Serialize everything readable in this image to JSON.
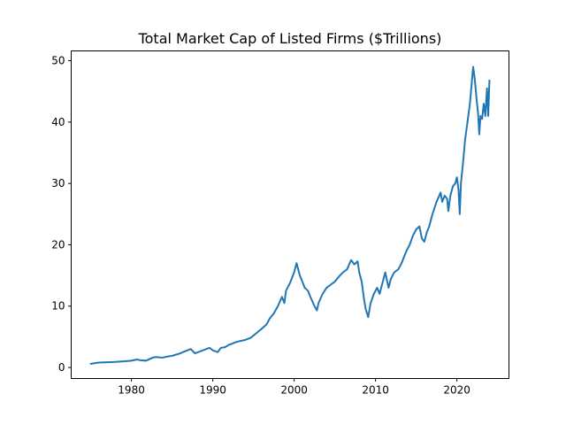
{
  "chart_data": {
    "type": "line",
    "title": "Total Market Cap of Listed Firms ($Trillions)",
    "xlabel": "",
    "ylabel": "",
    "xlim": [
      1972.6,
      2026.4
    ],
    "ylim": [
      -1.8,
      51.6
    ],
    "xticks": [
      1980,
      1990,
      2000,
      2010,
      2020
    ],
    "xtick_labels": [
      "1980",
      "1990",
      "2000",
      "2010",
      "2020"
    ],
    "yticks": [
      0,
      10,
      20,
      30,
      40,
      50
    ],
    "ytick_labels": [
      "0",
      "10",
      "20",
      "30",
      "40",
      "50"
    ],
    "grid": false,
    "legend": "none",
    "series": [
      {
        "color": "#1f77b4",
        "x": [
          1975.0,
          1976.0,
          1977.0,
          1978.0,
          1979.0,
          1980.0,
          1980.7,
          1981.0,
          1981.8,
          1982.6,
          1983.0,
          1983.8,
          1984.5,
          1985.0,
          1986.0,
          1986.5,
          1987.3,
          1987.8,
          1988.0,
          1989.0,
          1989.6,
          1990.0,
          1990.6,
          1991.0,
          1991.5,
          1992.0,
          1993.0,
          1994.0,
          1994.6,
          1995.0,
          1996.0,
          1996.6,
          1997.0,
          1997.5,
          1998.0,
          1998.5,
          1998.8,
          1999.0,
          1999.5,
          2000.0,
          2000.3,
          2000.7,
          2001.0,
          2001.3,
          2001.7,
          2002.0,
          2002.5,
          2002.8,
          2003.0,
          2003.5,
          2004.0,
          2004.5,
          2005.0,
          2005.5,
          2006.0,
          2006.5,
          2007.0,
          2007.4,
          2007.8,
          2008.0,
          2008.3,
          2008.6,
          2008.8,
          2009.1,
          2009.4,
          2009.8,
          2010.2,
          2010.5,
          2010.8,
          2011.2,
          2011.6,
          2011.9,
          2012.3,
          2012.8,
          2013.2,
          2013.8,
          2014.2,
          2014.6,
          2015.0,
          2015.4,
          2015.7,
          2016.0,
          2016.3,
          2016.6,
          2017.0,
          2017.5,
          2018.0,
          2018.2,
          2018.5,
          2018.8,
          2018.95,
          2019.2,
          2019.5,
          2019.8,
          2020.0,
          2020.2,
          2020.35,
          2020.5,
          2020.8,
          2021.0,
          2021.3,
          2021.6,
          2021.8,
          2022.0,
          2022.2,
          2022.4,
          2022.6,
          2022.75,
          2022.9,
          2023.1,
          2023.3,
          2023.5,
          2023.7,
          2023.85,
          2024.0
        ],
        "values": [
          0.6,
          0.8,
          0.85,
          0.9,
          1.0,
          1.1,
          1.3,
          1.2,
          1.1,
          1.6,
          1.7,
          1.6,
          1.8,
          1.9,
          2.3,
          2.6,
          3.0,
          2.3,
          2.4,
          2.9,
          3.2,
          2.8,
          2.5,
          3.2,
          3.3,
          3.7,
          4.2,
          4.5,
          4.8,
          5.2,
          6.3,
          7.0,
          8.0,
          8.8,
          10.0,
          11.5,
          10.5,
          12.5,
          13.8,
          15.5,
          17.0,
          15.0,
          14.0,
          13.0,
          12.5,
          11.5,
          10.0,
          9.3,
          10.5,
          12.0,
          13.0,
          13.5,
          14.0,
          14.8,
          15.5,
          16.0,
          17.5,
          16.8,
          17.3,
          15.5,
          14.0,
          11.0,
          9.5,
          8.2,
          10.5,
          12.0,
          13.0,
          12.0,
          13.5,
          15.5,
          13.0,
          14.5,
          15.5,
          16.0,
          17.0,
          19.0,
          20.0,
          21.5,
          22.5,
          23.0,
          21.0,
          20.5,
          22.0,
          23.0,
          25.0,
          27.0,
          28.5,
          27.0,
          28.0,
          27.5,
          25.5,
          28.0,
          29.5,
          30.0,
          31.0,
          29.0,
          25.0,
          30.0,
          34.0,
          37.0,
          40.0,
          43.0,
          46.0,
          49.0,
          47.0,
          44.0,
          41.5,
          38.0,
          41.0,
          40.5,
          43.0,
          41.0,
          45.5,
          41.0,
          46.8
        ]
      }
    ]
  }
}
